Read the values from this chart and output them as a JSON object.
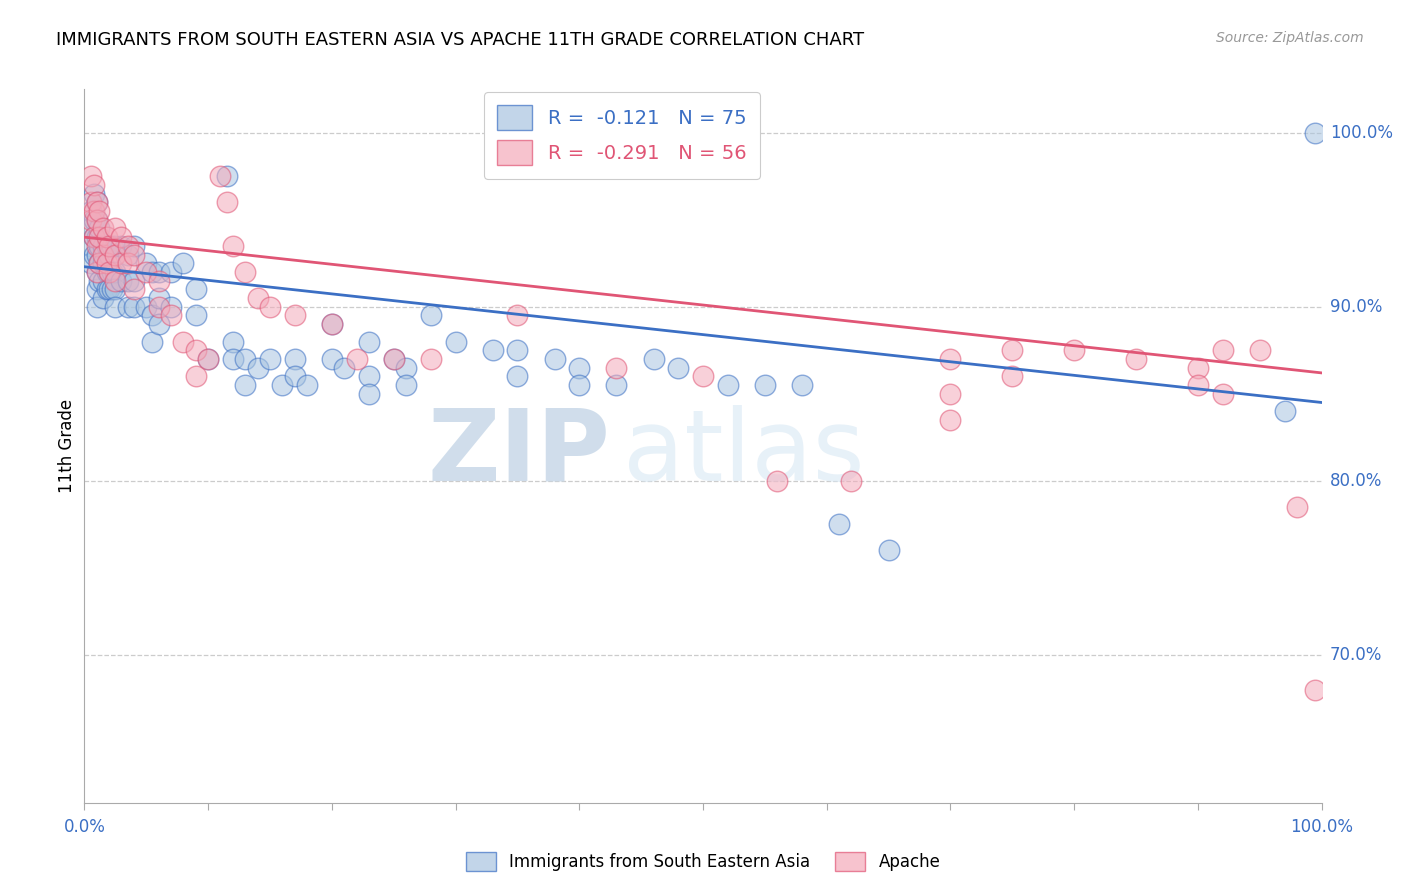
{
  "title": "IMMIGRANTS FROM SOUTH EASTERN ASIA VS APACHE 11TH GRADE CORRELATION CHART",
  "source": "Source: ZipAtlas.com",
  "ylabel": "11th Grade",
  "right_yticks": [
    "100.0%",
    "90.0%",
    "80.0%",
    "70.0%"
  ],
  "right_ytick_vals": [
    1.0,
    0.9,
    0.8,
    0.7
  ],
  "xlim": [
    0.0,
    1.0
  ],
  "ylim": [
    0.615,
    1.025
  ],
  "legend_blue_r": "-0.121",
  "legend_blue_n": "75",
  "legend_pink_r": "-0.291",
  "legend_pink_n": "56",
  "blue_color": "#A8C4E0",
  "pink_color": "#F4AABA",
  "line_blue_color": "#3B6FC4",
  "line_pink_color": "#E05575",
  "watermark_zip": "ZIP",
  "watermark_atlas": "atlas",
  "blue_scatter": [
    [
      0.005,
      0.955
    ],
    [
      0.005,
      0.945
    ],
    [
      0.005,
      0.935
    ],
    [
      0.005,
      0.925
    ],
    [
      0.008,
      0.965
    ],
    [
      0.008,
      0.95
    ],
    [
      0.008,
      0.94
    ],
    [
      0.008,
      0.93
    ],
    [
      0.01,
      0.96
    ],
    [
      0.01,
      0.95
    ],
    [
      0.01,
      0.94
    ],
    [
      0.01,
      0.93
    ],
    [
      0.01,
      0.92
    ],
    [
      0.01,
      0.91
    ],
    [
      0.01,
      0.9
    ],
    [
      0.012,
      0.945
    ],
    [
      0.012,
      0.935
    ],
    [
      0.012,
      0.925
    ],
    [
      0.012,
      0.915
    ],
    [
      0.015,
      0.935
    ],
    [
      0.015,
      0.925
    ],
    [
      0.015,
      0.915
    ],
    [
      0.015,
      0.905
    ],
    [
      0.018,
      0.935
    ],
    [
      0.018,
      0.92
    ],
    [
      0.018,
      0.91
    ],
    [
      0.02,
      0.93
    ],
    [
      0.02,
      0.92
    ],
    [
      0.02,
      0.91
    ],
    [
      0.022,
      0.935
    ],
    [
      0.022,
      0.92
    ],
    [
      0.022,
      0.91
    ],
    [
      0.025,
      0.935
    ],
    [
      0.025,
      0.92
    ],
    [
      0.025,
      0.91
    ],
    [
      0.025,
      0.9
    ],
    [
      0.03,
      0.935
    ],
    [
      0.03,
      0.915
    ],
    [
      0.035,
      0.93
    ],
    [
      0.035,
      0.915
    ],
    [
      0.035,
      0.9
    ],
    [
      0.04,
      0.935
    ],
    [
      0.04,
      0.915
    ],
    [
      0.04,
      0.9
    ],
    [
      0.05,
      0.925
    ],
    [
      0.05,
      0.9
    ],
    [
      0.055,
      0.92
    ],
    [
      0.055,
      0.895
    ],
    [
      0.055,
      0.88
    ],
    [
      0.06,
      0.92
    ],
    [
      0.06,
      0.905
    ],
    [
      0.06,
      0.89
    ],
    [
      0.07,
      0.92
    ],
    [
      0.07,
      0.9
    ],
    [
      0.08,
      0.925
    ],
    [
      0.09,
      0.91
    ],
    [
      0.09,
      0.895
    ],
    [
      0.1,
      0.87
    ],
    [
      0.115,
      0.975
    ],
    [
      0.12,
      0.88
    ],
    [
      0.12,
      0.87
    ],
    [
      0.13,
      0.87
    ],
    [
      0.13,
      0.855
    ],
    [
      0.14,
      0.865
    ],
    [
      0.15,
      0.87
    ],
    [
      0.16,
      0.855
    ],
    [
      0.17,
      0.87
    ],
    [
      0.17,
      0.86
    ],
    [
      0.18,
      0.855
    ],
    [
      0.2,
      0.89
    ],
    [
      0.2,
      0.87
    ],
    [
      0.21,
      0.865
    ],
    [
      0.23,
      0.88
    ],
    [
      0.23,
      0.86
    ],
    [
      0.23,
      0.85
    ],
    [
      0.25,
      0.87
    ],
    [
      0.26,
      0.865
    ],
    [
      0.26,
      0.855
    ],
    [
      0.28,
      0.895
    ],
    [
      0.3,
      0.88
    ],
    [
      0.33,
      0.875
    ],
    [
      0.35,
      0.875
    ],
    [
      0.35,
      0.86
    ],
    [
      0.38,
      0.87
    ],
    [
      0.4,
      0.865
    ],
    [
      0.4,
      0.855
    ],
    [
      0.43,
      0.855
    ],
    [
      0.46,
      0.87
    ],
    [
      0.48,
      0.865
    ],
    [
      0.52,
      0.855
    ],
    [
      0.55,
      0.855
    ],
    [
      0.58,
      0.855
    ],
    [
      0.61,
      0.775
    ],
    [
      0.65,
      0.76
    ],
    [
      0.97,
      0.84
    ],
    [
      0.995,
      1.0
    ]
  ],
  "pink_scatter": [
    [
      0.005,
      0.975
    ],
    [
      0.005,
      0.96
    ],
    [
      0.005,
      0.95
    ],
    [
      0.008,
      0.97
    ],
    [
      0.008,
      0.955
    ],
    [
      0.008,
      0.94
    ],
    [
      0.01,
      0.96
    ],
    [
      0.01,
      0.95
    ],
    [
      0.01,
      0.935
    ],
    [
      0.01,
      0.92
    ],
    [
      0.012,
      0.955
    ],
    [
      0.012,
      0.94
    ],
    [
      0.012,
      0.925
    ],
    [
      0.015,
      0.945
    ],
    [
      0.015,
      0.93
    ],
    [
      0.018,
      0.94
    ],
    [
      0.018,
      0.925
    ],
    [
      0.02,
      0.935
    ],
    [
      0.02,
      0.92
    ],
    [
      0.025,
      0.945
    ],
    [
      0.025,
      0.93
    ],
    [
      0.025,
      0.915
    ],
    [
      0.03,
      0.94
    ],
    [
      0.03,
      0.925
    ],
    [
      0.035,
      0.935
    ],
    [
      0.035,
      0.925
    ],
    [
      0.04,
      0.93
    ],
    [
      0.04,
      0.91
    ],
    [
      0.05,
      0.92
    ],
    [
      0.06,
      0.915
    ],
    [
      0.06,
      0.9
    ],
    [
      0.07,
      0.895
    ],
    [
      0.08,
      0.88
    ],
    [
      0.09,
      0.875
    ],
    [
      0.09,
      0.86
    ],
    [
      0.1,
      0.87
    ],
    [
      0.11,
      0.975
    ],
    [
      0.115,
      0.96
    ],
    [
      0.12,
      0.935
    ],
    [
      0.13,
      0.92
    ],
    [
      0.14,
      0.905
    ],
    [
      0.15,
      0.9
    ],
    [
      0.17,
      0.895
    ],
    [
      0.2,
      0.89
    ],
    [
      0.22,
      0.87
    ],
    [
      0.25,
      0.87
    ],
    [
      0.28,
      0.87
    ],
    [
      0.35,
      0.895
    ],
    [
      0.43,
      0.865
    ],
    [
      0.5,
      0.86
    ],
    [
      0.56,
      0.8
    ],
    [
      0.62,
      0.8
    ],
    [
      0.7,
      0.87
    ],
    [
      0.7,
      0.85
    ],
    [
      0.7,
      0.835
    ],
    [
      0.75,
      0.875
    ],
    [
      0.75,
      0.86
    ],
    [
      0.8,
      0.875
    ],
    [
      0.85,
      0.87
    ],
    [
      0.9,
      0.865
    ],
    [
      0.9,
      0.855
    ],
    [
      0.92,
      0.875
    ],
    [
      0.92,
      0.85
    ],
    [
      0.95,
      0.875
    ],
    [
      0.98,
      0.785
    ],
    [
      0.995,
      0.68
    ]
  ],
  "blue_line_x": [
    0.0,
    1.0
  ],
  "blue_line_y": [
    0.923,
    0.845
  ],
  "pink_line_x": [
    0.0,
    1.0
  ],
  "pink_line_y": [
    0.94,
    0.862
  ]
}
